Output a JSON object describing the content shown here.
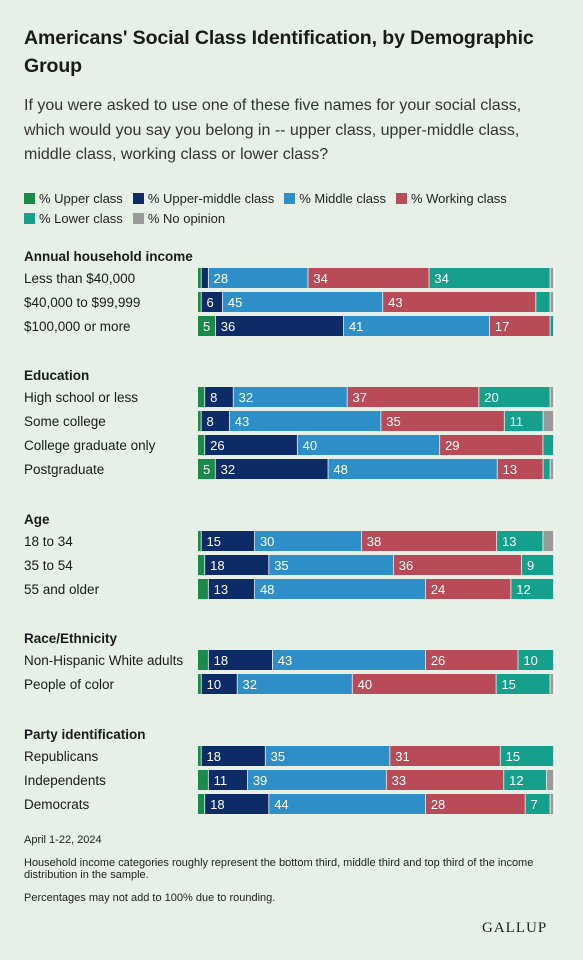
{
  "title": "Americans' Social Class Identification, by Demographic Group",
  "subtitle": "If you were asked to use one of these five names for your social class, which would you say you belong in -- upper class, upper-middle class, middle class, working class or lower class?",
  "legend": [
    {
      "label": "% Upper class",
      "color": "#1a8a4a"
    },
    {
      "label": "% Upper-middle class",
      "color": "#0d2b66"
    },
    {
      "label": "% Middle class",
      "color": "#2e8fc8"
    },
    {
      "label": "% Working class",
      "color": "#b84b57"
    },
    {
      "label": "% Lower class",
      "color": "#14a08a"
    },
    {
      "label": "% No opinion",
      "color": "#9a9a9a"
    }
  ],
  "chart_data": {
    "type": "bar",
    "orientation": "horizontal-stacked",
    "series_names": [
      "% Upper class",
      "% Upper-middle class",
      "% Middle class",
      "% Working class",
      "% Lower class",
      "% No opinion"
    ],
    "colors": [
      "#1a8a4a",
      "#0d2b66",
      "#2e8fc8",
      "#b84b57",
      "#14a08a",
      "#9a9a9a"
    ],
    "groups": [
      {
        "name": "Annual household income",
        "rows": [
          {
            "label": "Less than $40,000",
            "values": [
              1,
              2,
              28,
              34,
              34,
              1
            ]
          },
          {
            "label": "$40,000 to $99,999",
            "values": [
              1,
              6,
              45,
              43,
              4,
              1
            ]
          },
          {
            "label": "$100,000 or more",
            "values": [
              5,
              36,
              41,
              17,
              1,
              0
            ]
          }
        ]
      },
      {
        "name": "Education",
        "rows": [
          {
            "label": "High school or less",
            "values": [
              2,
              8,
              32,
              37,
              20,
              1
            ]
          },
          {
            "label": "Some college",
            "values": [
              1,
              8,
              43,
              35,
              11,
              3
            ]
          },
          {
            "label": "College graduate only",
            "values": [
              2,
              26,
              40,
              29,
              3,
              0
            ]
          },
          {
            "label": "Postgraduate",
            "values": [
              5,
              32,
              48,
              13,
              2,
              1
            ]
          }
        ]
      },
      {
        "name": "Age",
        "rows": [
          {
            "label": "18 to 34",
            "values": [
              1,
              15,
              30,
              38,
              13,
              3
            ]
          },
          {
            "label": "35 to 54",
            "values": [
              2,
              18,
              35,
              36,
              9,
              0
            ]
          },
          {
            "label": "55 and older",
            "values": [
              3,
              13,
              48,
              24,
              12,
              0
            ]
          }
        ]
      },
      {
        "name": "Race/Ethnicity",
        "rows": [
          {
            "label": "Non-Hispanic White adults",
            "values": [
              3,
              18,
              43,
              26,
              10,
              0
            ]
          },
          {
            "label": "People of color",
            "values": [
              1,
              10,
              32,
              40,
              15,
              1
            ]
          }
        ]
      },
      {
        "name": "Party identification",
        "rows": [
          {
            "label": "Republicans",
            "values": [
              1,
              18,
              35,
              31,
              15,
              0
            ]
          },
          {
            "label": "Independents",
            "values": [
              3,
              11,
              39,
              33,
              12,
              2
            ]
          },
          {
            "label": "Democrats",
            "values": [
              2,
              18,
              44,
              28,
              7,
              1
            ]
          }
        ]
      }
    ]
  },
  "footer": {
    "date": "April 1-22, 2024",
    "note1": "Household income categories roughly represent the bottom third, middle third and top third of the income distribution in the sample.",
    "note2": "Percentages may not add to 100% due to rounding."
  },
  "logo": "GALLUP"
}
